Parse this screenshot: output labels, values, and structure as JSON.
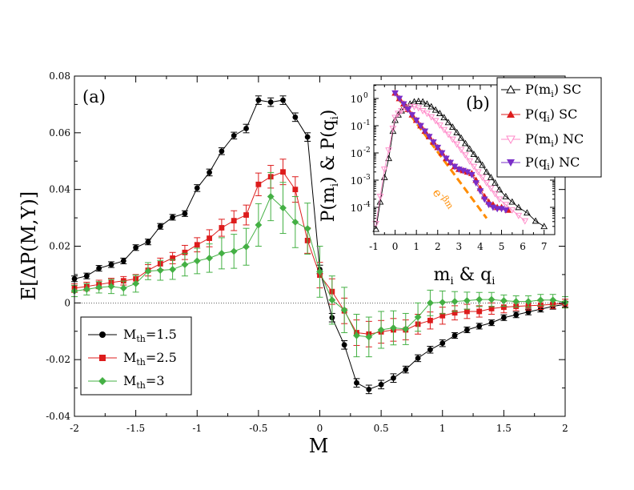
{
  "chart_data": [
    {
      "type": "line",
      "panel_label": "(a)",
      "xlabel": "M",
      "ylabel": "E[ΔP(M,Y)]",
      "xlim": [
        -2,
        2
      ],
      "ylim": [
        -0.04,
        0.08
      ],
      "xticks": [
        "-2",
        "-1.5",
        "-1",
        "-0.5",
        "0",
        "0.5",
        "1",
        "1.5",
        "2"
      ],
      "yticks": [
        "-0.04",
        "-0.02",
        "0",
        "0.02",
        "0.04",
        "0.06",
        "0.08"
      ],
      "zero_line": true,
      "legend_position": "bottom-left",
      "series": [
        {
          "name": "M",
          "name_sub": "th",
          "name_suffix": "=1.5",
          "color": "#000000",
          "marker": "circle",
          "x": [
            -2.0,
            -1.9,
            -1.8,
            -1.7,
            -1.6,
            -1.5,
            -1.4,
            -1.3,
            -1.2,
            -1.1,
            -1.0,
            -0.9,
            -0.8,
            -0.7,
            -0.6,
            -0.5,
            -0.4,
            -0.3,
            -0.2,
            -0.1,
            0.0,
            0.1,
            0.2,
            0.3,
            0.4,
            0.5,
            0.6,
            0.7,
            0.8,
            0.9,
            1.0,
            1.1,
            1.2,
            1.3,
            1.4,
            1.5,
            1.6,
            1.7,
            1.8,
            1.9,
            2.0
          ],
          "y": [
            0.0085,
            0.0095,
            0.0122,
            0.0135,
            0.0148,
            0.0195,
            0.0215,
            0.027,
            0.0302,
            0.0315,
            0.0405,
            0.046,
            0.0535,
            0.059,
            0.0615,
            0.0715,
            0.0708,
            0.0715,
            0.0655,
            0.0585,
            0.0118,
            -0.0052,
            -0.0148,
            -0.0282,
            -0.0305,
            -0.0288,
            -0.0265,
            -0.0235,
            -0.0195,
            -0.0165,
            -0.0142,
            -0.0115,
            -0.0095,
            -0.0082,
            -0.007,
            -0.0052,
            -0.0042,
            -0.0032,
            -0.0022,
            -0.0012,
            -0.0005
          ],
          "err": [
            0.001,
            0.001,
            0.001,
            0.001,
            0.001,
            0.001,
            0.001,
            0.001,
            0.001,
            0.001,
            0.0012,
            0.0012,
            0.0012,
            0.0012,
            0.0015,
            0.0015,
            0.0015,
            0.0015,
            0.0015,
            0.0015,
            0.0015,
            0.0015,
            0.0015,
            0.0015,
            0.0015,
            0.0015,
            0.0015,
            0.0012,
            0.0012,
            0.0012,
            0.0012,
            0.001,
            0.001,
            0.001,
            0.001,
            0.001,
            0.001,
            0.001,
            0.001,
            0.001,
            0.001
          ]
        },
        {
          "name": "M",
          "name_sub": "th",
          "name_suffix": "=2.5",
          "color": "#dd1c1c",
          "marker": "square",
          "x": [
            -2.0,
            -1.9,
            -1.8,
            -1.7,
            -1.6,
            -1.5,
            -1.4,
            -1.3,
            -1.2,
            -1.1,
            -1.0,
            -0.9,
            -0.8,
            -0.7,
            -0.6,
            -0.5,
            -0.4,
            -0.3,
            -0.2,
            -0.1,
            0.0,
            0.1,
            0.2,
            0.3,
            0.4,
            0.5,
            0.6,
            0.7,
            0.8,
            0.9,
            1.0,
            1.1,
            1.2,
            1.3,
            1.4,
            1.5,
            1.6,
            1.7,
            1.8,
            1.9,
            2.0
          ],
          "y": [
            0.0052,
            0.0058,
            0.0065,
            0.0072,
            0.0078,
            0.0085,
            0.0115,
            0.0138,
            0.0158,
            0.0178,
            0.0205,
            0.0228,
            0.0265,
            0.029,
            0.031,
            0.0418,
            0.0445,
            0.0462,
            0.04,
            0.022,
            0.0098,
            0.004,
            -0.0028,
            -0.0105,
            -0.011,
            -0.0102,
            -0.0095,
            -0.0095,
            -0.0075,
            -0.0062,
            -0.0045,
            -0.0035,
            -0.003,
            -0.003,
            -0.002,
            -0.0015,
            -0.0012,
            -0.001,
            -0.0008,
            -0.0005,
            -0.0002
          ],
          "err": [
            0.0015,
            0.0015,
            0.0015,
            0.0015,
            0.0015,
            0.0015,
            0.002,
            0.002,
            0.002,
            0.0025,
            0.0025,
            0.003,
            0.003,
            0.0035,
            0.0035,
            0.004,
            0.004,
            0.0045,
            0.0045,
            0.0045,
            0.0045,
            0.0045,
            0.0045,
            0.0045,
            0.0045,
            0.004,
            0.004,
            0.0035,
            0.0035,
            0.003,
            0.003,
            0.0025,
            0.0025,
            0.002,
            0.002,
            0.002,
            0.0015,
            0.0015,
            0.0015,
            0.0015,
            0.0015
          ]
        },
        {
          "name": "M",
          "name_sub": "th",
          "name_suffix": "=3",
          "color": "#44b044",
          "marker": "diamond",
          "x": [
            -2.0,
            -1.9,
            -1.8,
            -1.7,
            -1.6,
            -1.5,
            -1.4,
            -1.3,
            -1.2,
            -1.1,
            -1.0,
            -0.9,
            -0.8,
            -0.7,
            -0.6,
            -0.5,
            -0.4,
            -0.3,
            -0.2,
            -0.1,
            0.0,
            0.1,
            0.2,
            0.3,
            0.4,
            0.5,
            0.6,
            0.7,
            0.8,
            0.9,
            1.0,
            1.1,
            1.2,
            1.3,
            1.4,
            1.5,
            1.6,
            1.7,
            1.8,
            1.9,
            2.0
          ],
          "y": [
            0.0042,
            0.0048,
            0.0055,
            0.0058,
            0.0052,
            0.0068,
            0.0112,
            0.0115,
            0.0118,
            0.0135,
            0.0148,
            0.0158,
            0.0175,
            0.0182,
            0.0198,
            0.0275,
            0.0375,
            0.0335,
            0.0285,
            0.0262,
            0.011,
            0.001,
            -0.0025,
            -0.0115,
            -0.012,
            -0.0095,
            -0.0088,
            -0.0092,
            -0.005,
            0.0,
            0.0002,
            0.0005,
            0.0008,
            0.0012,
            0.0012,
            0.0008,
            0.0005,
            0.0005,
            0.001,
            0.001,
            0.0002
          ],
          "err": [
            0.002,
            0.002,
            0.002,
            0.0025,
            0.0025,
            0.003,
            0.003,
            0.0035,
            0.0035,
            0.004,
            0.0045,
            0.005,
            0.0055,
            0.006,
            0.0065,
            0.0075,
            0.0085,
            0.009,
            0.009,
            0.009,
            0.009,
            0.0085,
            0.008,
            0.0075,
            0.007,
            0.0065,
            0.006,
            0.0055,
            0.005,
            0.0045,
            0.004,
            0.0035,
            0.003,
            0.0025,
            0.0025,
            0.002,
            0.002,
            0.002,
            0.002,
            0.002,
            0.002
          ]
        }
      ]
    },
    {
      "type": "line",
      "panel_label": "(b)",
      "xlabel": "m",
      "xlabel_sub": "i",
      "xlabel_mid": " & q",
      "xlabel_sub2": "i",
      "ylabel": "P(m",
      "ylabel_sub": "i",
      "ylabel_mid": ") & P(q",
      "ylabel_sub2": "i",
      "ylabel_end": ")",
      "yscale": "log",
      "xlim": [
        -1,
        7.5
      ],
      "ylim_exponent": [
        -5,
        0.5
      ],
      "xticks": [
        "-1",
        "0",
        "1",
        "2",
        "3",
        "4",
        "5",
        "6",
        "7"
      ],
      "ytick_base": "10",
      "ytick_exponents": [
        "0",
        "-1",
        "-2",
        "-3",
        "-4"
      ],
      "legend_position": "right",
      "fit_label": "e",
      "fit_label_exponent": "-βm",
      "fit_line": {
        "color": "#ff8c00",
        "x": [
          0.1,
          4.3
        ],
        "log10_y": [
          0.05,
          -4.4
        ]
      },
      "series": [
        {
          "name": "P(m",
          "name_sub": "i",
          "name_suffix": ") SC",
          "color": "#000000",
          "marker": "triangle-up-open",
          "x": [
            -0.9,
            -0.7,
            -0.5,
            -0.3,
            -0.1,
            0.0,
            0.15,
            0.3,
            0.5,
            0.7,
            0.9,
            1.1,
            1.3,
            1.5,
            1.7,
            1.9,
            2.1,
            2.3,
            2.5,
            2.7,
            2.9,
            3.1,
            3.3,
            3.5,
            3.7,
            3.9,
            4.1,
            4.3,
            4.5,
            4.7,
            4.9,
            5.2,
            5.5,
            5.8,
            6.2,
            6.6,
            7.0
          ],
          "log10_y": [
            -4.8,
            -3.8,
            -2.9,
            -2.2,
            -1.2,
            -0.8,
            -0.6,
            -0.45,
            -0.3,
            -0.2,
            -0.12,
            -0.1,
            -0.12,
            -0.2,
            -0.3,
            -0.42,
            -0.55,
            -0.7,
            -0.88,
            -1.05,
            -1.25,
            -1.45,
            -1.65,
            -1.85,
            -2.05,
            -2.25,
            -2.45,
            -2.7,
            -2.9,
            -3.1,
            -3.35,
            -3.6,
            -3.8,
            -4.0,
            -4.2,
            -4.5,
            -4.7
          ]
        },
        {
          "name": "P(q",
          "name_sub": "i",
          "name_suffix": ") SC",
          "color": "#dd1c1c",
          "marker": "triangle-up",
          "x": [
            0.0,
            0.2,
            0.4,
            0.6,
            0.8,
            1.0,
            1.2,
            1.4,
            1.6,
            1.8,
            2.0,
            2.2,
            2.4,
            2.6,
            2.8,
            3.0,
            3.2,
            3.4,
            3.6,
            3.8,
            4.0,
            4.2,
            4.4,
            4.6,
            4.8,
            5.0,
            5.3
          ],
          "log10_y": [
            0.2,
            0.0,
            -0.2,
            -0.4,
            -0.6,
            -0.8,
            -1.0,
            -1.2,
            -1.4,
            -1.6,
            -1.8,
            -2.0,
            -2.2,
            -2.35,
            -2.5,
            -2.6,
            -2.65,
            -2.7,
            -2.75,
            -3.0,
            -3.3,
            -3.6,
            -3.8,
            -3.9,
            -4.0,
            -4.0,
            -4.1
          ]
        },
        {
          "name": "P(m",
          "name_sub": "i",
          "name_suffix": ") NC",
          "color": "#ff88c8",
          "marker": "triangle-down-open",
          "x": [
            -0.9,
            -0.7,
            -0.5,
            -0.3,
            -0.1,
            0.0,
            0.15,
            0.3,
            0.5,
            0.7,
            0.9,
            1.1,
            1.3,
            1.5,
            1.7,
            1.9,
            2.1,
            2.3,
            2.5,
            2.7,
            2.9,
            3.1,
            3.3,
            3.5,
            3.7,
            3.9,
            4.1,
            4.3,
            4.5,
            4.7,
            4.9,
            5.2,
            5.5,
            5.8,
            6.1
          ],
          "log10_y": [
            -4.6,
            -3.6,
            -2.6,
            -1.9,
            -1.1,
            -0.7,
            -0.55,
            -0.45,
            -0.35,
            -0.3,
            -0.3,
            -0.35,
            -0.45,
            -0.55,
            -0.68,
            -0.82,
            -0.98,
            -1.15,
            -1.32,
            -1.5,
            -1.68,
            -1.88,
            -2.08,
            -2.3,
            -2.5,
            -2.7,
            -2.9,
            -3.1,
            -3.3,
            -3.5,
            -3.7,
            -3.9,
            -4.1,
            -4.3,
            -4.5
          ]
        },
        {
          "name": "P(q",
          "name_sub": "i",
          "name_suffix": ") NC",
          "color": "#7a2ec8",
          "marker": "triangle-down",
          "x": [
            0.0,
            0.2,
            0.4,
            0.6,
            0.8,
            1.0,
            1.2,
            1.4,
            1.6,
            1.8,
            2.0,
            2.2,
            2.4,
            2.6,
            2.8,
            3.0,
            3.2,
            3.4,
            3.6,
            3.8,
            4.0,
            4.2,
            4.4,
            4.6,
            4.8,
            5.0,
            5.2
          ],
          "log10_y": [
            0.2,
            0.0,
            -0.2,
            -0.4,
            -0.6,
            -0.8,
            -1.0,
            -1.2,
            -1.4,
            -1.6,
            -1.8,
            -2.0,
            -2.2,
            -2.35,
            -2.5,
            -2.6,
            -2.65,
            -2.7,
            -2.8,
            -3.1,
            -3.4,
            -3.7,
            -3.9,
            -4.0,
            -4.05,
            -4.05,
            -4.1
          ]
        }
      ]
    }
  ]
}
